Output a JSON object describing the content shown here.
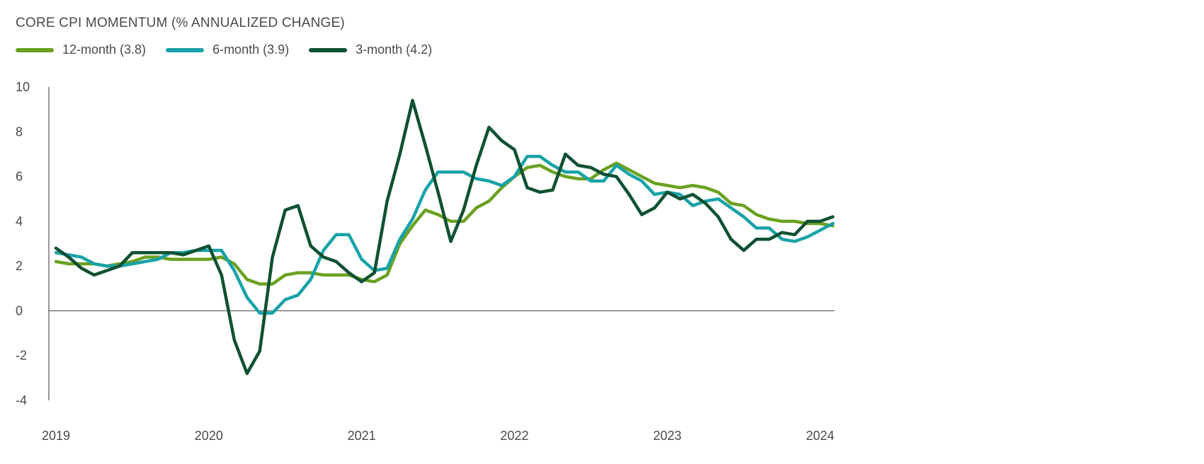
{
  "chart_data": {
    "type": "line",
    "title": "CORE CPI MOMENTUM (% ANNUALIZED CHANGE)",
    "xlabel": "",
    "ylabel": "",
    "ylim": [
      -4,
      10
    ],
    "y_ticks": [
      10,
      8,
      6,
      4,
      2,
      0,
      -2,
      -4
    ],
    "x_range": [
      "2019-01",
      "2024-02"
    ],
    "x_tick_labels": [
      "2019",
      "2020",
      "2021",
      "2022",
      "2023",
      "2024"
    ],
    "x_tick_dates": [
      "2019-01",
      "2020-01",
      "2021-01",
      "2022-01",
      "2023-01",
      "2024-01"
    ],
    "grid": false,
    "zero_line": true,
    "legend_position": "top-left",
    "x": [
      "2019-01",
      "2019-02",
      "2019-03",
      "2019-04",
      "2019-05",
      "2019-06",
      "2019-07",
      "2019-08",
      "2019-09",
      "2019-10",
      "2019-11",
      "2019-12",
      "2020-01",
      "2020-02",
      "2020-03",
      "2020-04",
      "2020-05",
      "2020-06",
      "2020-07",
      "2020-08",
      "2020-09",
      "2020-10",
      "2020-11",
      "2020-12",
      "2021-01",
      "2021-02",
      "2021-03",
      "2021-04",
      "2021-05",
      "2021-06",
      "2021-07",
      "2021-08",
      "2021-09",
      "2021-10",
      "2021-11",
      "2021-12",
      "2022-01",
      "2022-02",
      "2022-03",
      "2022-04",
      "2022-05",
      "2022-06",
      "2022-07",
      "2022-08",
      "2022-09",
      "2022-10",
      "2022-11",
      "2022-12",
      "2023-01",
      "2023-02",
      "2023-03",
      "2023-04",
      "2023-05",
      "2023-06",
      "2023-07",
      "2023-08",
      "2023-09",
      "2023-10",
      "2023-11",
      "2023-12",
      "2024-01",
      "2024-02"
    ],
    "series": [
      {
        "name": "12-month (3.8)",
        "color": "#6aa121",
        "values": [
          2.2,
          2.1,
          2.1,
          2.1,
          2.0,
          2.1,
          2.2,
          2.4,
          2.4,
          2.3,
          2.3,
          2.3,
          2.3,
          2.4,
          2.1,
          1.4,
          1.2,
          1.2,
          1.6,
          1.7,
          1.7,
          1.6,
          1.6,
          1.6,
          1.4,
          1.3,
          1.6,
          3.0,
          3.8,
          4.5,
          4.3,
          4.0,
          4.0,
          4.6,
          4.9,
          5.5,
          6.0,
          6.4,
          6.5,
          6.2,
          6.0,
          5.9,
          5.9,
          6.3,
          6.6,
          6.3,
          6.0,
          5.7,
          5.6,
          5.5,
          5.6,
          5.5,
          5.3,
          4.8,
          4.7,
          4.3,
          4.1,
          4.0,
          4.0,
          3.9,
          3.9,
          3.8
        ]
      },
      {
        "name": "6-month (3.9)",
        "color": "#18a3a8",
        "values": [
          2.6,
          2.5,
          2.4,
          2.1,
          2.0,
          2.0,
          2.1,
          2.2,
          2.3,
          2.6,
          2.6,
          2.7,
          2.7,
          2.7,
          1.8,
          0.6,
          -0.1,
          -0.1,
          0.5,
          0.7,
          1.4,
          2.7,
          3.4,
          3.4,
          2.3,
          1.8,
          1.9,
          3.2,
          4.1,
          5.4,
          6.2,
          6.2,
          6.2,
          5.9,
          5.8,
          5.6,
          6.0,
          6.9,
          6.9,
          6.5,
          6.2,
          6.2,
          5.8,
          5.8,
          6.5,
          6.1,
          5.8,
          5.2,
          5.3,
          5.2,
          4.7,
          4.9,
          5.0,
          4.6,
          4.2,
          3.7,
          3.7,
          3.2,
          3.1,
          3.3,
          3.6,
          3.9
        ]
      },
      {
        "name": "3-month (4.2)",
        "color": "#0f5132",
        "values": [
          2.8,
          2.4,
          1.9,
          1.6,
          1.8,
          2.0,
          2.6,
          2.6,
          2.6,
          2.6,
          2.5,
          2.7,
          2.9,
          1.6,
          -1.3,
          -2.8,
          -1.8,
          2.4,
          4.5,
          4.7,
          2.9,
          2.4,
          2.2,
          1.7,
          1.3,
          1.7,
          4.9,
          7.0,
          9.4,
          7.4,
          5.3,
          3.1,
          4.5,
          6.5,
          8.2,
          7.6,
          7.2,
          5.5,
          5.3,
          5.4,
          7.0,
          6.5,
          6.4,
          6.1,
          6.0,
          5.2,
          4.3,
          4.6,
          5.3,
          5.0,
          5.2,
          4.8,
          4.2,
          3.2,
          2.7,
          3.2,
          3.2,
          3.5,
          3.4,
          4.0,
          4.0,
          4.2
        ]
      }
    ]
  }
}
